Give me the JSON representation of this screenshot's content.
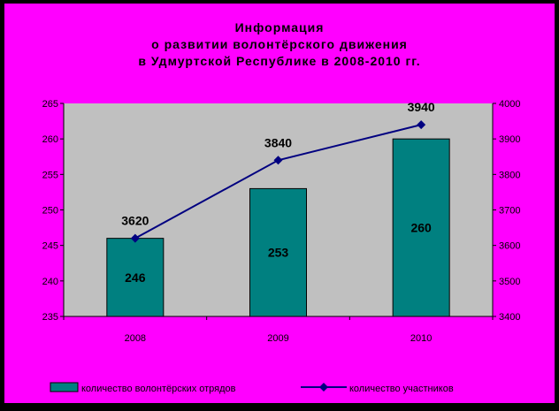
{
  "colors": {
    "outer_background": "#000000",
    "chart_background": "#ff00ff",
    "plot_area": "#c0c0c0",
    "bar_fill": "#008080",
    "line_color": "#000080",
    "axis_text": "#000000"
  },
  "chart_data": {
    "type": "bar",
    "title_lines": [
      "Информация",
      "о развитии волонтёрского движения",
      "в Удмуртской Республике в 2008-2010 гг."
    ],
    "categories": [
      "2008",
      "2009",
      "2010"
    ],
    "ylabel": "",
    "y2label": "",
    "y_left": {
      "min": 235,
      "max": 265,
      "ticks": [
        "235",
        "240",
        "245",
        "250",
        "255",
        "260",
        "265"
      ]
    },
    "y_right": {
      "min": 3400,
      "max": 4000,
      "ticks": [
        "3400",
        "3500",
        "3600",
        "3700",
        "3800",
        "3900",
        "4000"
      ]
    },
    "grid": false,
    "legend_position": "bottom",
    "series": [
      {
        "name": "количество волонтёрских отрядов",
        "type": "bar",
        "axis": "left",
        "values": [
          246,
          253,
          260
        ],
        "labels": [
          "246",
          "253",
          "260"
        ]
      },
      {
        "name": "количество участников",
        "type": "line",
        "axis": "right",
        "values": [
          3620,
          3840,
          3940
        ],
        "labels": [
          "3620",
          "3840",
          "3940"
        ]
      }
    ]
  }
}
